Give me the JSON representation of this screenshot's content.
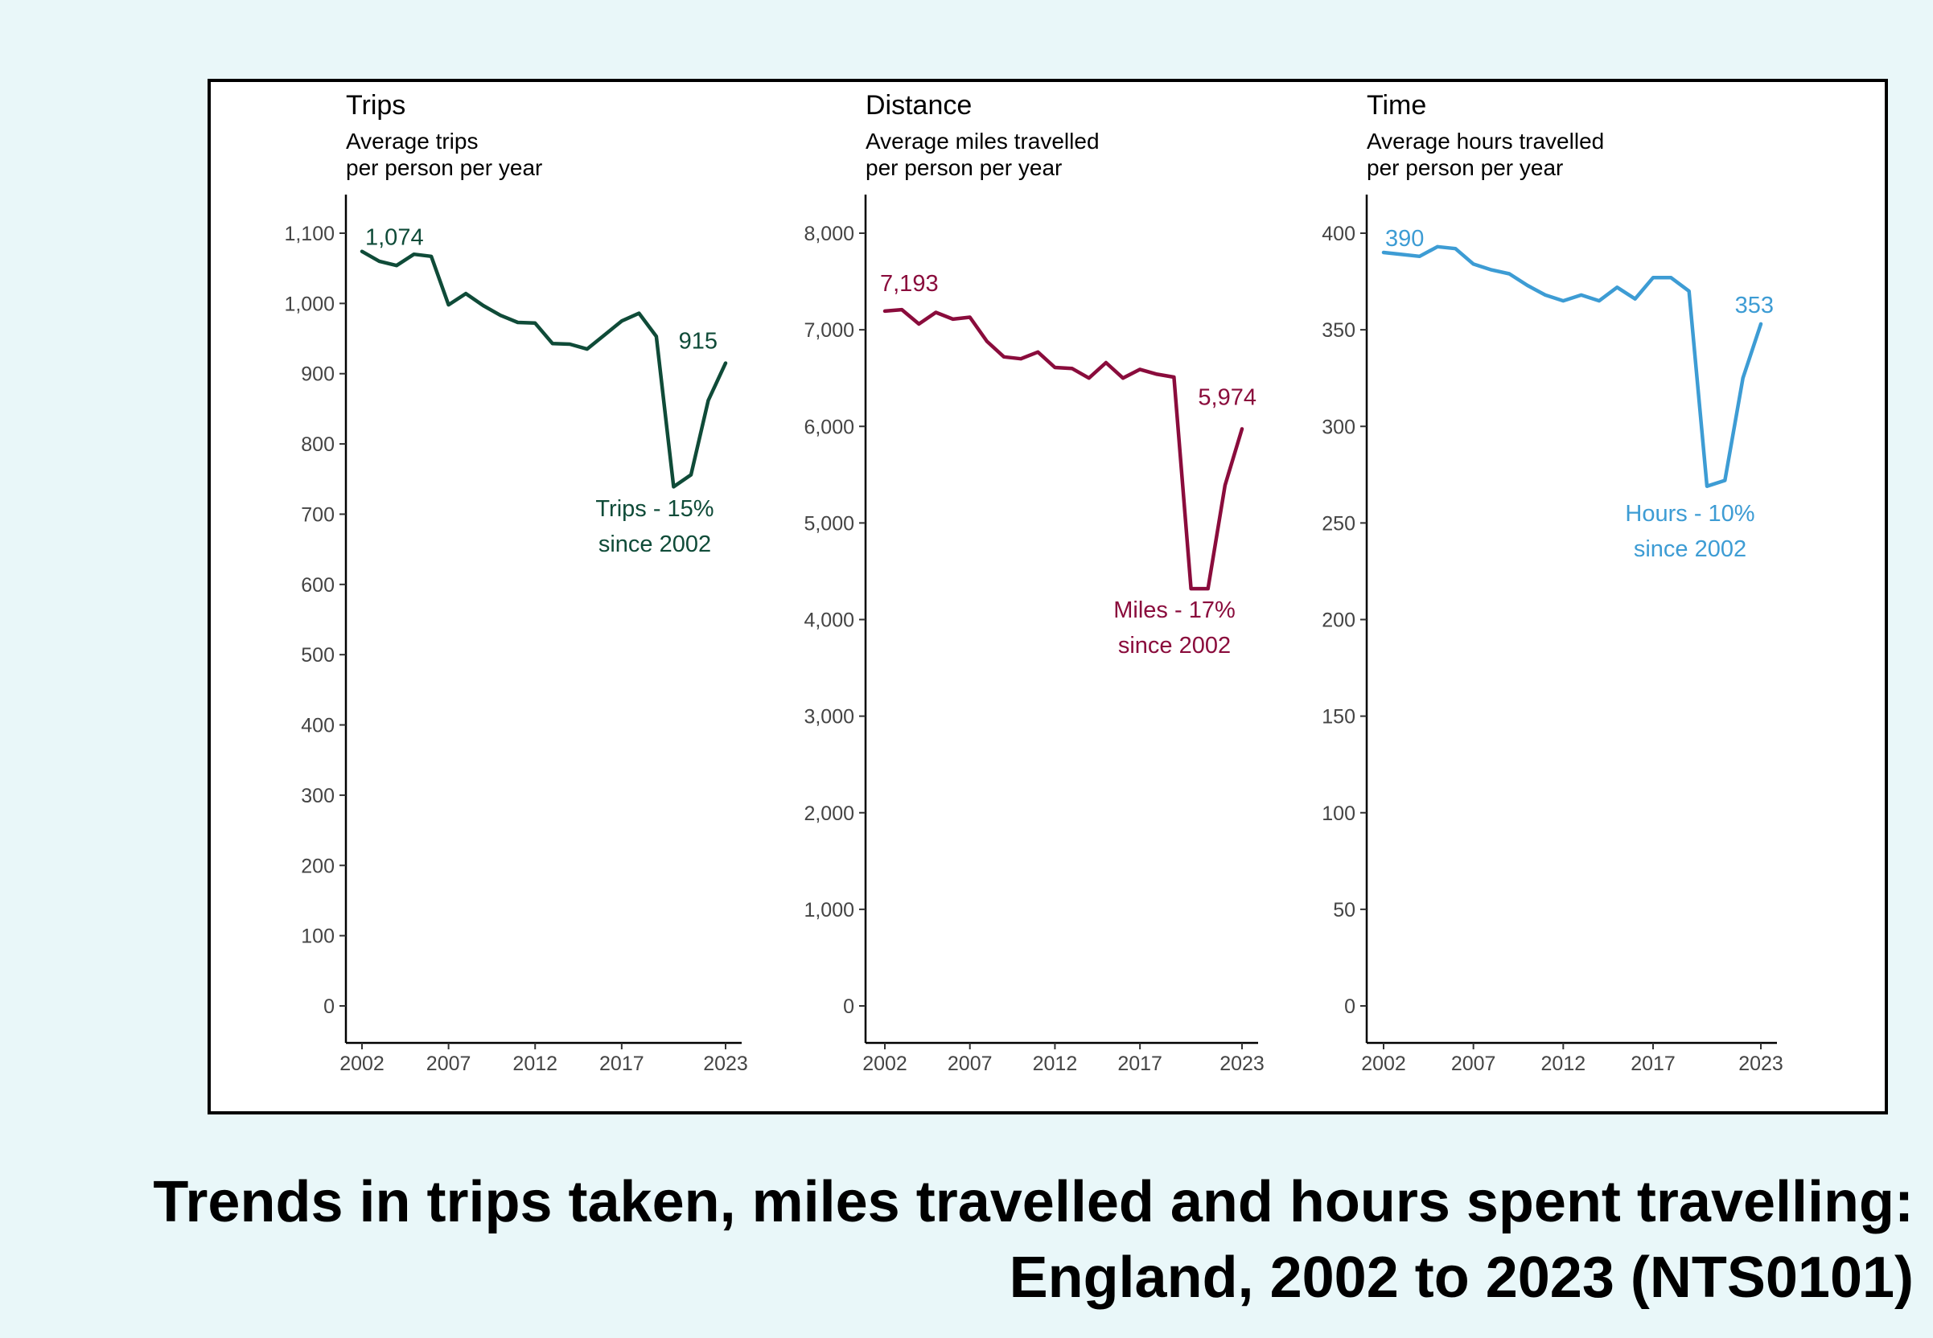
{
  "caption": {
    "line1": "Trends in trips taken, miles travelled and hours spent travelling:",
    "line2": "England, 2002 to 2023 (NTS0101)"
  },
  "chart_data": [
    {
      "type": "line",
      "title": "Trips",
      "subtitle": [
        "Average trips",
        "per person per year"
      ],
      "color": "#0f4b38",
      "x": [
        2002,
        2003,
        2004,
        2005,
        2006,
        2007,
        2008,
        2009,
        2010,
        2011,
        2012,
        2013,
        2014,
        2015,
        2016,
        2017,
        2018,
        2019,
        2020,
        2021,
        2022,
        2023
      ],
      "values": [
        1074,
        1060,
        1054,
        1070,
        1067,
        998,
        1014,
        997,
        983,
        973,
        972,
        943,
        942,
        935,
        955,
        975,
        986,
        953,
        739,
        756,
        862,
        915
      ],
      "xticks": [
        "2002",
        "2007",
        "2012",
        "2017",
        "2023"
      ],
      "ylim": [
        0,
        1100
      ],
      "yticks": [
        "0",
        "100",
        "200",
        "300",
        "400",
        "500",
        "600",
        "700",
        "800",
        "900",
        "1,000",
        "1,100"
      ],
      "start_label": "1,074",
      "end_label": "915",
      "annotation": [
        "Trips - 15%",
        "since 2002"
      ]
    },
    {
      "type": "line",
      "title": "Distance",
      "subtitle": [
        "Average miles travelled",
        "per person per year"
      ],
      "color": "#8a0c3c",
      "x": [
        2002,
        2003,
        2004,
        2005,
        2006,
        2007,
        2008,
        2009,
        2010,
        2011,
        2012,
        2013,
        2014,
        2015,
        2016,
        2017,
        2018,
        2019,
        2020,
        2021,
        2022,
        2023
      ],
      "values": [
        7193,
        7208,
        7060,
        7180,
        7110,
        7130,
        6880,
        6720,
        6700,
        6770,
        6610,
        6600,
        6500,
        6660,
        6500,
        6590,
        6540,
        6510,
        4320,
        4320,
        5390,
        5974
      ],
      "xticks": [
        "2002",
        "2007",
        "2012",
        "2017",
        "2023"
      ],
      "ylim": [
        0,
        8000
      ],
      "yticks": [
        "0",
        "1,000",
        "2,000",
        "3,000",
        "4,000",
        "5,000",
        "6,000",
        "7,000",
        "8,000"
      ],
      "start_label": "7,193",
      "end_label": "5,974",
      "annotation": [
        "Miles - 17%",
        "since 2002"
      ]
    },
    {
      "type": "line",
      "title": "Time",
      "subtitle": [
        "Average hours travelled",
        "per person per year"
      ],
      "color": "#3d9cd4",
      "x": [
        2002,
        2003,
        2004,
        2005,
        2006,
        2007,
        2008,
        2009,
        2010,
        2011,
        2012,
        2013,
        2014,
        2015,
        2016,
        2017,
        2018,
        2019,
        2020,
        2021,
        2022,
        2023
      ],
      "values": [
        390,
        389,
        388,
        393,
        392,
        384,
        381,
        379,
        373,
        368,
        365,
        368,
        365,
        372,
        366,
        377,
        377,
        370,
        269,
        272,
        325,
        353
      ],
      "xticks": [
        "2002",
        "2007",
        "2012",
        "2017",
        "2023"
      ],
      "ylim": [
        0,
        400
      ],
      "yticks": [
        "0",
        "50",
        "100",
        "150",
        "200",
        "250",
        "300",
        "350",
        "400"
      ],
      "start_label": "390",
      "end_label": "353",
      "annotation": [
        "Hours - 10%",
        "since 2002"
      ]
    }
  ]
}
